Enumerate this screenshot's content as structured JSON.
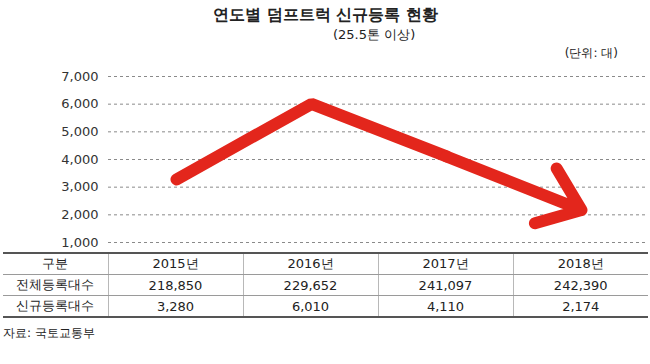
{
  "chart_data": {
    "type": "line",
    "title": "연도별 덤프트럭 신규등록 현황",
    "subtitle": "(25.5톤 이상)",
    "y_label": "(단위: 대)",
    "categories": [
      "2015년",
      "2016년",
      "2017년",
      "2018년"
    ],
    "values": [
      3280,
      6010,
      4110,
      2174
    ],
    "color": "#e3261c",
    "marker": "arrow",
    "ylim": [
      1000,
      7000
    ],
    "yticks": [
      {
        "value": 1000,
        "label": "1,000"
      },
      {
        "value": 2000,
        "label": "2,000"
      },
      {
        "value": 3000,
        "label": "3,000"
      },
      {
        "value": 4000,
        "label": "4,000"
      },
      {
        "value": 5000,
        "label": "5,000"
      },
      {
        "value": 6000,
        "label": "6,000"
      },
      {
        "value": 7000,
        "label": "7,000"
      }
    ],
    "grid": true,
    "tick_labels": "y"
  },
  "table": {
    "header": [
      "구분",
      "2015년",
      "2016년",
      "2017년",
      "2018년"
    ],
    "rows": [
      [
        "전체등록대수",
        "218,850",
        "229,652",
        "241,097",
        "242,390"
      ],
      [
        "신규등록대수",
        "3,280",
        "6,010",
        "4,110",
        "2,174"
      ]
    ]
  },
  "source": "자료: 국토교통부"
}
